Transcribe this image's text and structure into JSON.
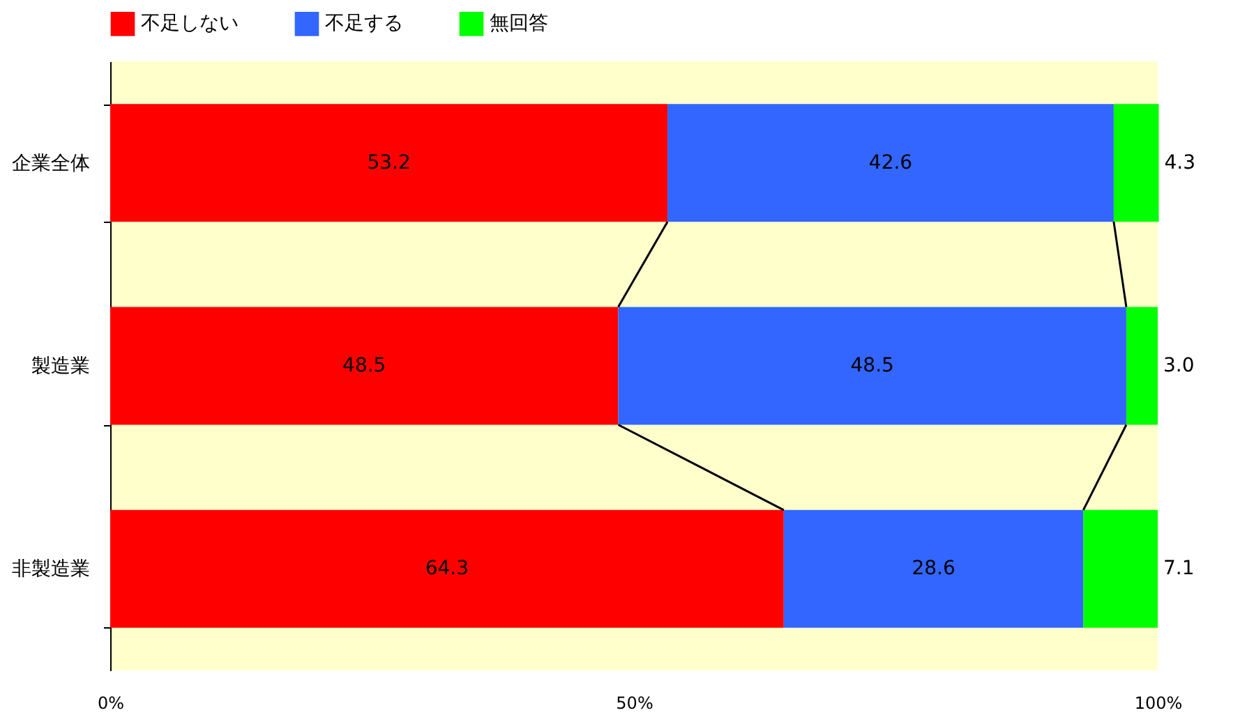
{
  "chart_data": {
    "type": "bar",
    "orientation": "horizontal",
    "stacked": true,
    "categories": [
      "企業全体",
      "製造業",
      "非製造業"
    ],
    "series": [
      {
        "name": "不足しない",
        "color": "#ff0000",
        "values": [
          53.2,
          48.5,
          64.3
        ],
        "value_labels": [
          "53.2",
          "48.5",
          "64.3"
        ]
      },
      {
        "name": "不足する",
        "color": "#3366ff",
        "values": [
          42.6,
          48.5,
          28.6
        ],
        "value_labels": [
          "42.6",
          "48.5",
          "28.6"
        ]
      },
      {
        "name": "無回答",
        "color": "#00ff00",
        "values": [
          4.3,
          3.0,
          7.1
        ],
        "value_labels": [
          "4.3",
          "3.0",
          "7.1"
        ]
      }
    ],
    "xlim": [
      0,
      100
    ],
    "xticks": [
      {
        "value": 0,
        "label": "0%"
      },
      {
        "value": 50,
        "label": "50%"
      },
      {
        "value": 100,
        "label": "100%"
      }
    ],
    "legend": "top",
    "grid": false
  }
}
